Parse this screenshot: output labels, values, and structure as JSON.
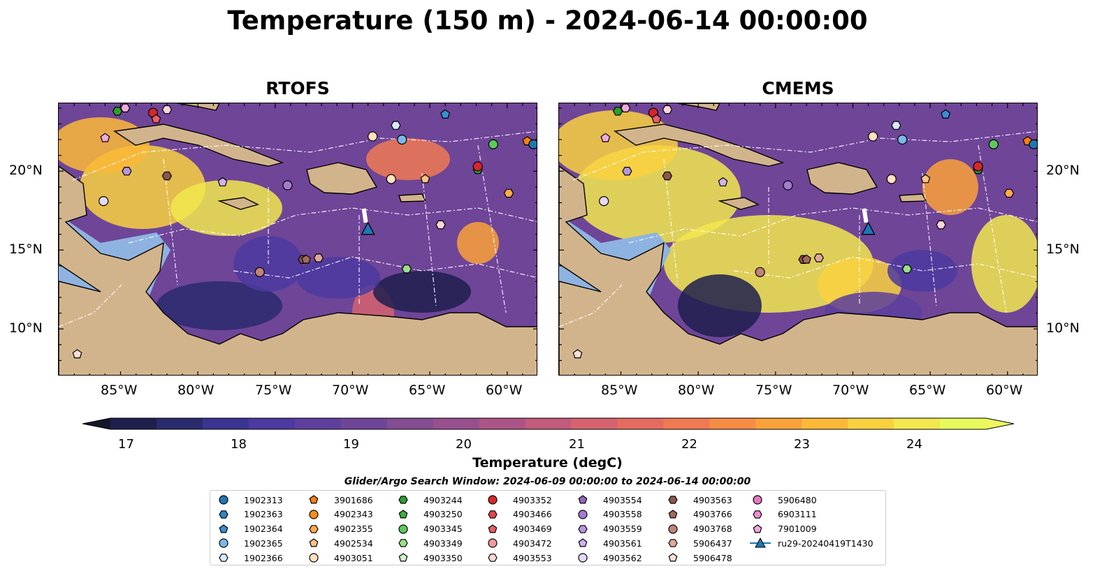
{
  "title": "Temperature (150 m) - 2024-06-14 00:00:00",
  "panels": [
    {
      "title": "RTOFS"
    },
    {
      "title": "CMEMS"
    }
  ],
  "axes": {
    "x_ticks": [
      "85°W",
      "80°W",
      "75°W",
      "70°W",
      "65°W",
      "60°W"
    ],
    "y_ticks": [
      "20°N",
      "15°N",
      "10°N"
    ]
  },
  "colorbar": {
    "title": "Temperature (degC)",
    "ticks": [
      "17",
      "18",
      "19",
      "20",
      "21",
      "22",
      "23",
      "24"
    ],
    "colors": [
      "#1f1f4d",
      "#2a2a6e",
      "#3a3590",
      "#4c3aa0",
      "#5d3f9e",
      "#6f4598",
      "#834c93",
      "#984f8e",
      "#ad5486",
      "#c25b7c",
      "#d5636f",
      "#e46c61",
      "#f07a52",
      "#f78c44",
      "#fba13a",
      "#fcb838",
      "#f9d13f",
      "#f2e84f",
      "#e9f85c"
    ],
    "extend_low": "#131628",
    "extend_high": "#eef95f"
  },
  "window_title": "Glider/Argo Search Window: 2024-06-09 00:00:00 to 2024-06-14 00:00:00",
  "legend": {
    "columns": [
      [
        {
          "label": "1902313",
          "marker": "circle",
          "color": "#1f77b4"
        },
        {
          "label": "1902363",
          "marker": "hexagon",
          "color": "#2e86c1"
        },
        {
          "label": "1902364",
          "marker": "pentagon",
          "color": "#3a8fd0"
        },
        {
          "label": "1902365",
          "marker": "circle",
          "color": "#7ab8e8"
        },
        {
          "label": "1902366",
          "marker": "hexagon",
          "color": "#d6eaf8"
        }
      ],
      [
        {
          "label": "3901686",
          "marker": "pentagon",
          "color": "#ff7f0e"
        },
        {
          "label": "4902343",
          "marker": "circle",
          "color": "#ff8c1a"
        },
        {
          "label": "4902355",
          "marker": "hexagon",
          "color": "#ffa94d"
        },
        {
          "label": "4902534",
          "marker": "pentagon",
          "color": "#ffc285"
        },
        {
          "label": "4903051",
          "marker": "circle",
          "color": "#ffe0bf"
        }
      ],
      [
        {
          "label": "4903244",
          "marker": "hexagon",
          "color": "#2ca02c"
        },
        {
          "label": "4903250",
          "marker": "pentagon",
          "color": "#3cb043"
        },
        {
          "label": "4903345",
          "marker": "circle",
          "color": "#5cc95c"
        },
        {
          "label": "4903349",
          "marker": "hexagon",
          "color": "#98df8a"
        },
        {
          "label": "4903350",
          "marker": "pentagon",
          "color": "#d4f5cf"
        }
      ],
      [
        {
          "label": "4903352",
          "marker": "circle",
          "color": "#d62728"
        },
        {
          "label": "4903466",
          "marker": "hexagon",
          "color": "#e0454a"
        },
        {
          "label": "4903469",
          "marker": "pentagon",
          "color": "#e85f67"
        },
        {
          "label": "4903472",
          "marker": "circle",
          "color": "#f19aa0"
        },
        {
          "label": "4903553",
          "marker": "hexagon",
          "color": "#fcd5d8"
        }
      ],
      [
        {
          "label": "4903554",
          "marker": "pentagon",
          "color": "#9467bd"
        },
        {
          "label": "4903558",
          "marker": "circle",
          "color": "#a37cd0"
        },
        {
          "label": "4903559",
          "marker": "hexagon",
          "color": "#b795e0"
        },
        {
          "label": "4903561",
          "marker": "pentagon",
          "color": "#ccb3ee"
        },
        {
          "label": "4903562",
          "marker": "circle",
          "color": "#e6d9f7"
        }
      ],
      [
        {
          "label": "4903563",
          "marker": "hexagon",
          "color": "#8c564b"
        },
        {
          "label": "4903766",
          "marker": "pentagon",
          "color": "#a16a5e"
        },
        {
          "label": "4903768",
          "marker": "circle",
          "color": "#c08477"
        },
        {
          "label": "5906437",
          "marker": "hexagon",
          "color": "#dea89b"
        },
        {
          "label": "5906478",
          "marker": "pentagon",
          "color": "#f7dfd7"
        }
      ],
      [
        {
          "label": "5906480",
          "marker": "circle",
          "color": "#e377c2"
        },
        {
          "label": "6903111",
          "marker": "hexagon",
          "color": "#ea8fcf"
        },
        {
          "label": "7901009",
          "marker": "pentagon",
          "color": "#f1a9dc"
        },
        {
          "label": "ru29-20240419T1430",
          "marker": "triangle-line",
          "color": "#1f77b4"
        }
      ]
    ]
  },
  "map_extent": {
    "lon": [
      -89,
      -58
    ],
    "lat": [
      7,
      24.3
    ]
  },
  "glider": {
    "lon": -69,
    "lat": 16.3,
    "color": "#1f77b4"
  },
  "markers": [
    {
      "lon": -85.2,
      "lat": 23.8,
      "marker": "hexagon",
      "color": "#2ca02c"
    },
    {
      "lon": -84.7,
      "lat": 24.0,
      "marker": "hexagon",
      "color": "#f1a9dc"
    },
    {
      "lon": -82.9,
      "lat": 23.7,
      "marker": "circle",
      "color": "#d62728"
    },
    {
      "lon": -82.7,
      "lat": 23.3,
      "marker": "pentagon",
      "color": "#e85f67"
    },
    {
      "lon": -82.0,
      "lat": 23.9,
      "marker": "hexagon",
      "color": "#fcd5d8"
    },
    {
      "lon": -86.0,
      "lat": 22.1,
      "marker": "pentagon",
      "color": "#f1a9dc"
    },
    {
      "lon": -84.6,
      "lat": 20.0,
      "marker": "hexagon",
      "color": "#b795e0"
    },
    {
      "lon": -82.0,
      "lat": 19.7,
      "marker": "hexagon",
      "color": "#8c564b"
    },
    {
      "lon": -78.4,
      "lat": 19.3,
      "marker": "pentagon",
      "color": "#ccb3ee"
    },
    {
      "lon": -86.1,
      "lat": 18.1,
      "marker": "circle",
      "color": "#e6d9f7"
    },
    {
      "lon": -74.2,
      "lat": 19.1,
      "marker": "circle",
      "color": "#a37cd0"
    },
    {
      "lon": -68.7,
      "lat": 22.2,
      "marker": "circle",
      "color": "#ffe0bf"
    },
    {
      "lon": -67.2,
      "lat": 22.9,
      "marker": "hexagon",
      "color": "#d6eaf8"
    },
    {
      "lon": -66.8,
      "lat": 22.0,
      "marker": "circle",
      "color": "#7ab8e8"
    },
    {
      "lon": -64.0,
      "lat": 23.6,
      "marker": "pentagon",
      "color": "#3a8fd0"
    },
    {
      "lon": -61.9,
      "lat": 20.1,
      "marker": "hexagon",
      "color": "#2ca02c"
    },
    {
      "lon": -61.9,
      "lat": 20.3,
      "marker": "circle",
      "color": "#d62728"
    },
    {
      "lon": -60.9,
      "lat": 21.7,
      "marker": "circle",
      "color": "#5cc95c"
    },
    {
      "lon": -67.5,
      "lat": 19.5,
      "marker": "circle",
      "color": "#ffe0bf"
    },
    {
      "lon": -65.3,
      "lat": 19.5,
      "marker": "pentagon",
      "color": "#ffc285"
    },
    {
      "lon": -59.9,
      "lat": 18.6,
      "marker": "hexagon",
      "color": "#ffa94d"
    },
    {
      "lon": -58.7,
      "lat": 21.9,
      "marker": "pentagon",
      "color": "#ff7f0e"
    },
    {
      "lon": -58.3,
      "lat": 21.7,
      "marker": "circle",
      "color": "#1f77b4"
    },
    {
      "lon": -64.3,
      "lat": 16.6,
      "marker": "hexagon",
      "color": "#fcd5d8"
    },
    {
      "lon": -73.2,
      "lat": 14.4,
      "marker": "hexagon",
      "color": "#8c564b"
    },
    {
      "lon": -73.0,
      "lat": 14.4,
      "marker": "pentagon",
      "color": "#a16a5e"
    },
    {
      "lon": -72.2,
      "lat": 14.5,
      "marker": "hexagon",
      "color": "#dea89b"
    },
    {
      "lon": -76.0,
      "lat": 13.6,
      "marker": "circle",
      "color": "#c08477"
    },
    {
      "lon": -66.5,
      "lat": 13.8,
      "marker": "hexagon",
      "color": "#98df8a"
    },
    {
      "lon": -87.8,
      "lat": 8.4,
      "marker": "pentagon",
      "color": "#f7dfd7"
    }
  ]
}
